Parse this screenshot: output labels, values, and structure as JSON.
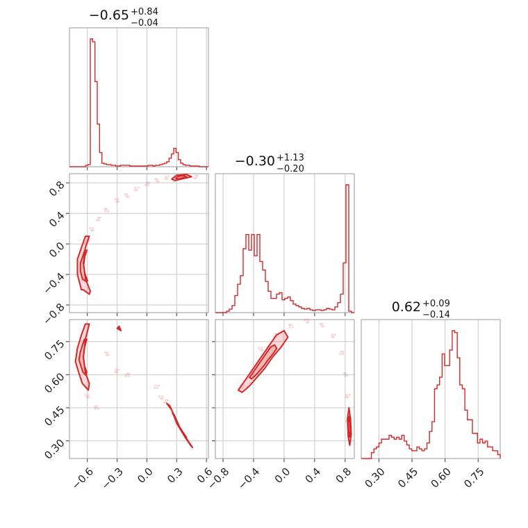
{
  "chart_data": {
    "type": "corner",
    "color": "#d62728",
    "grid": true,
    "titles": [
      {
        "value": "−0.65",
        "plus": "+0.84",
        "minus": "−0.04"
      },
      {
        "value": "−0.30",
        "plus": "+1.13",
        "minus": "−0.20"
      },
      {
        "value": "0.62",
        "plus": "+0.09",
        "minus": "−0.14"
      }
    ],
    "params": [
      {
        "range": [
          -0.78,
          0.62
        ],
        "ticks": [
          -0.6,
          -0.3,
          0.0,
          0.3,
          0.6
        ],
        "tick_labels": [
          "−0.6",
          "−0.3",
          "0.0",
          "0.3",
          "0.6"
        ]
      },
      {
        "range": [
          -0.9,
          0.92
        ],
        "ticks": [
          -0.8,
          -0.4,
          0.0,
          0.4,
          0.8
        ],
        "tick_labels": [
          "−0.8",
          "−0.4",
          "0.0",
          "0.4",
          "0.8"
        ]
      },
      {
        "range": [
          0.22,
          0.85
        ],
        "ticks": [
          0.3,
          0.45,
          0.6,
          0.75
        ],
        "tick_labels": [
          "0.30",
          "0.45",
          "0.60",
          "0.75"
        ]
      }
    ],
    "histograms": [
      {
        "param": 0,
        "bins": [
          -0.78,
          0.62
        ],
        "counts": [
          0,
          0,
          0,
          0,
          0,
          0,
          0,
          2,
          3,
          180,
          176,
          120,
          60,
          20,
          5,
          4,
          3,
          3,
          2,
          2,
          1,
          1,
          2,
          2,
          2,
          2,
          1,
          1,
          1,
          1,
          1,
          1,
          1,
          1,
          2,
          2,
          1,
          2,
          2,
          3,
          4,
          5,
          7,
          12,
          18,
          26,
          20,
          10,
          5,
          3,
          2,
          2,
          1,
          1,
          1,
          1,
          0,
          0,
          0,
          0
        ]
      },
      {
        "param": 1,
        "bins": [
          -0.9,
          0.92
        ],
        "counts": [
          0,
          0,
          0,
          0,
          2,
          5,
          10,
          24,
          40,
          52,
          90,
          110,
          88,
          110,
          80,
          110,
          72,
          60,
          44,
          30,
          20,
          20,
          26,
          28,
          18,
          20,
          22,
          17,
          12,
          10,
          8,
          6,
          5,
          6,
          4,
          3,
          4,
          4,
          3,
          4,
          6,
          5,
          4,
          8,
          14,
          26,
          70,
          180,
          2,
          0
        ]
      },
      {
        "param": 2,
        "bins": [
          0.22,
          0.85
        ],
        "counts": [
          0,
          0,
          0,
          0,
          3,
          5,
          6,
          8,
          10,
          10,
          10,
          12,
          11,
          10,
          11,
          10,
          12,
          9,
          7,
          5,
          4,
          4,
          6,
          5,
          4,
          5,
          8,
          14,
          19,
          36,
          38,
          42,
          54,
          48,
          48,
          56,
          66,
          65,
          52,
          38,
          36,
          25,
          20,
          20,
          13,
          13,
          8,
          10,
          8,
          9,
          6,
          6,
          4,
          4,
          2
        ]
      }
    ],
    "density_2d": [
      {
        "x_param": 0,
        "y_param": 1,
        "modes": [
          {
            "points": [
              [
                -0.66,
                -0.6
              ],
              [
                -0.7,
                -0.4
              ],
              [
                -0.7,
                -0.2
              ],
              [
                -0.66,
                -0.05
              ],
              [
                -0.62,
                0.1
              ],
              [
                -0.58,
                0.1
              ],
              [
                -0.62,
                -0.05
              ],
              [
                -0.64,
                -0.25
              ],
              [
                -0.62,
                -0.45
              ],
              [
                -0.57,
                -0.62
              ],
              [
                -0.58,
                -0.66
              ],
              [
                -0.64,
                -0.6
              ]
            ]
          },
          {
            "points": [
              [
                0.25,
                0.85
              ],
              [
                0.3,
                0.9
              ],
              [
                0.4,
                0.91
              ],
              [
                0.45,
                0.88
              ],
              [
                0.38,
                0.86
              ],
              [
                0.28,
                0.83
              ]
            ]
          }
        ],
        "scatter_track": [
          [
            -0.6,
            0.05
          ],
          [
            -0.55,
            0.2
          ],
          [
            -0.48,
            0.33
          ],
          [
            -0.4,
            0.44
          ],
          [
            -0.3,
            0.56
          ],
          [
            -0.2,
            0.65
          ],
          [
            -0.1,
            0.73
          ],
          [
            0.0,
            0.79
          ],
          [
            0.1,
            0.83
          ],
          [
            0.2,
            0.86
          ],
          [
            0.3,
            0.88
          ],
          [
            0.4,
            0.9
          ],
          [
            0.5,
            0.88
          ]
        ]
      },
      {
        "x_param": 0,
        "y_param": 2,
        "modes": [
          {
            "points": [
              [
                -0.68,
                0.6
              ],
              [
                -0.72,
                0.66
              ],
              [
                -0.7,
                0.72
              ],
              [
                -0.66,
                0.78
              ],
              [
                -0.62,
                0.83
              ],
              [
                -0.58,
                0.83
              ],
              [
                -0.62,
                0.76
              ],
              [
                -0.64,
                0.68
              ],
              [
                -0.62,
                0.61
              ],
              [
                -0.58,
                0.56
              ],
              [
                -0.59,
                0.53
              ],
              [
                -0.65,
                0.56
              ]
            ]
          },
          {
            "points": [
              [
                0.2,
                0.47
              ],
              [
                0.25,
                0.44
              ],
              [
                0.3,
                0.38
              ],
              [
                0.38,
                0.32
              ],
              [
                0.44,
                0.28
              ],
              [
                0.46,
                0.27
              ],
              [
                0.4,
                0.31
              ],
              [
                0.33,
                0.36
              ],
              [
                0.28,
                0.41
              ],
              [
                0.23,
                0.46
              ]
            ]
          },
          {
            "points": [
              [
                -0.3,
                0.81
              ],
              [
                -0.28,
                0.82
              ],
              [
                -0.26,
                0.8
              ]
            ]
          }
        ],
        "scatter_track": [
          [
            0.1,
            0.55
          ],
          [
            0.15,
            0.5
          ],
          [
            0.2,
            0.48
          ],
          [
            -0.5,
            0.45
          ],
          [
            -0.6,
            0.5
          ],
          [
            -0.4,
            0.7
          ],
          [
            -0.3,
            0.62
          ],
          [
            -0.2,
            0.6
          ]
        ]
      },
      {
        "x_param": 1,
        "y_param": 2,
        "modes": [
          {
            "points": [
              [
                -0.6,
                0.53
              ],
              [
                -0.5,
                0.58
              ],
              [
                -0.4,
                0.63
              ],
              [
                -0.3,
                0.68
              ],
              [
                -0.2,
                0.73
              ],
              [
                -0.1,
                0.78
              ],
              [
                0.0,
                0.8
              ],
              [
                0.05,
                0.77
              ],
              [
                -0.05,
                0.72
              ],
              [
                -0.15,
                0.68
              ],
              [
                -0.25,
                0.63
              ],
              [
                -0.35,
                0.59
              ],
              [
                -0.45,
                0.55
              ],
              [
                -0.55,
                0.52
              ]
            ]
          },
          {
            "points": [
              [
                0.85,
                0.45
              ],
              [
                0.87,
                0.4
              ],
              [
                0.88,
                0.33
              ],
              [
                0.86,
                0.28
              ],
              [
                0.84,
                0.32
              ],
              [
                0.83,
                0.4
              ]
            ]
          }
        ],
        "scatter_track": [
          [
            -0.55,
            0.55
          ],
          [
            -0.3,
            0.72
          ],
          [
            -0.1,
            0.78
          ],
          [
            0.1,
            0.82
          ],
          [
            0.3,
            0.84
          ],
          [
            0.5,
            0.83
          ],
          [
            0.65,
            0.78
          ],
          [
            0.75,
            0.7
          ],
          [
            0.8,
            0.6
          ],
          [
            0.83,
            0.5
          ],
          [
            0.85,
            0.4
          ]
        ]
      }
    ]
  }
}
